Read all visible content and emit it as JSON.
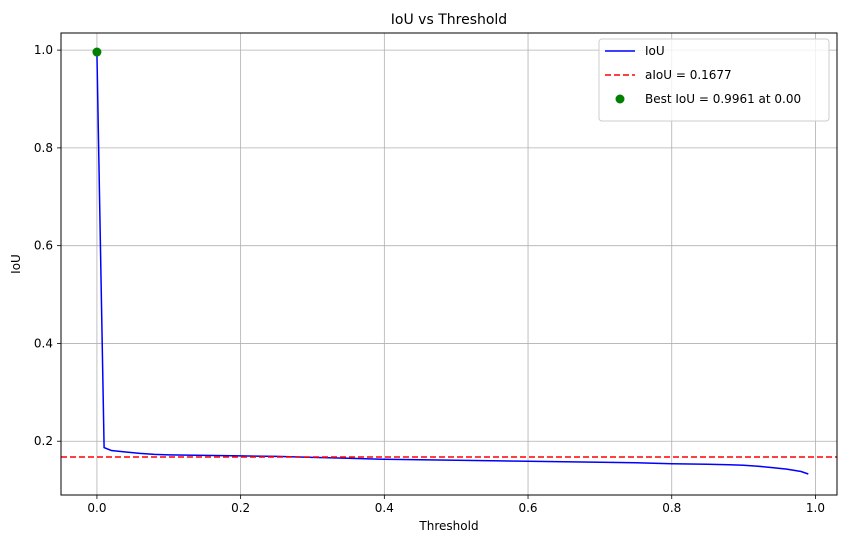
{
  "chart_data": {
    "type": "line",
    "title": "IoU vs Threshold",
    "xlabel": "Threshold",
    "ylabel": "IoU",
    "xlim": [
      -0.05,
      1.03
    ],
    "ylim": [
      0.09,
      1.035
    ],
    "xticks": [
      0.0,
      0.2,
      0.4,
      0.6,
      0.8,
      1.0
    ],
    "xtick_labels": [
      "0.0",
      "0.2",
      "0.4",
      "0.6",
      "0.8",
      "1.0"
    ],
    "yticks": [
      0.2,
      0.4,
      0.6,
      0.8,
      1.0
    ],
    "ytick_labels": [
      "0.2",
      "0.4",
      "0.6",
      "0.8",
      "1.0"
    ],
    "grid": true,
    "legend_position": "top-right",
    "series": [
      {
        "name": "IoU",
        "kind": "line",
        "color": "#0000ff",
        "x": [
          0.0,
          0.01,
          0.02,
          0.04,
          0.06,
          0.08,
          0.1,
          0.15,
          0.2,
          0.25,
          0.3,
          0.35,
          0.4,
          0.45,
          0.5,
          0.55,
          0.6,
          0.65,
          0.7,
          0.75,
          0.8,
          0.85,
          0.88,
          0.9,
          0.92,
          0.94,
          0.96,
          0.98,
          0.99
        ],
        "y": [
          0.9961,
          0.187,
          0.181,
          0.178,
          0.175,
          0.173,
          0.172,
          0.171,
          0.17,
          0.169,
          0.167,
          0.165,
          0.163,
          0.162,
          0.161,
          0.16,
          0.159,
          0.158,
          0.157,
          0.156,
          0.154,
          0.153,
          0.152,
          0.151,
          0.149,
          0.146,
          0.143,
          0.138,
          0.133
        ]
      },
      {
        "name": "aIoU = 0.1677",
        "kind": "hline",
        "color": "#ff0000",
        "style": "dashed",
        "y": 0.1677
      },
      {
        "name": "Best IoU = 0.9961 at 0.00",
        "kind": "point",
        "color": "#008000",
        "x": 0.0,
        "y": 0.9961
      }
    ]
  }
}
